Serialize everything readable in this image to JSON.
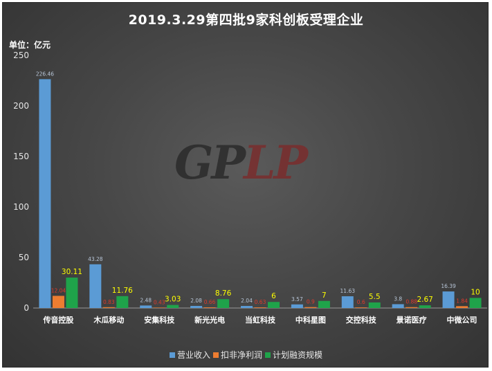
{
  "chart_data": {
    "type": "bar",
    "title": "2019.3.29第四批9家科创板受理企业",
    "unit_label": "单位：亿元",
    "categories": [
      "传音控股",
      "木瓜移动",
      "安集科技",
      "新光光电",
      "当虹科技",
      "中科星图",
      "交控科技",
      "景诺医疗",
      "中微公司"
    ],
    "series": [
      {
        "name": "营业收入",
        "color": "#5b9bd5",
        "label_color": "#b8c6d8",
        "values": [
          226.46,
          43.28,
          2.48,
          2.08,
          2.04,
          3.57,
          11.63,
          3.8,
          16.39
        ]
      },
      {
        "name": "扣非净利润",
        "color": "#ed7d31",
        "label_color": "#e03a2c",
        "values": [
          12.04,
          0.83,
          0.43,
          0.66,
          0.63,
          0.9,
          0.6,
          0.88,
          1.84
        ]
      },
      {
        "name": "计划融资规模",
        "color": "#1fa34a",
        "label_color": "#ffff00",
        "values": [
          30.11,
          11.76,
          3.03,
          8.76,
          6,
          7,
          5.5,
          2.67,
          10
        ]
      }
    ],
    "ylim": [
      0,
      250
    ],
    "yticks": [
      0,
      50,
      100,
      150,
      200,
      250
    ],
    "grid": false,
    "legend_position": "bottom"
  },
  "watermark": {
    "part1": "GP",
    "part2": "LP"
  }
}
